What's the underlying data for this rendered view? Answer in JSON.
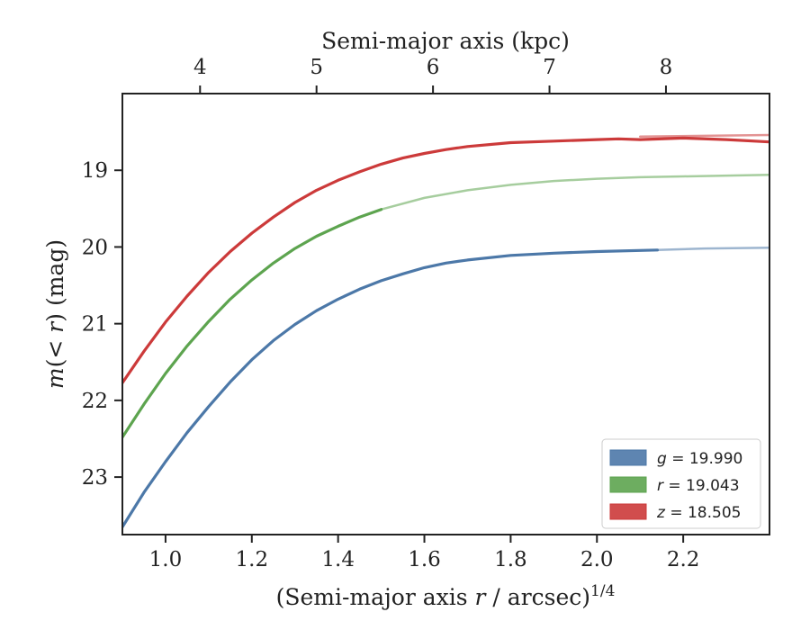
{
  "chart_data": {
    "type": "line",
    "xlabel": "(Semi-major axis r / arcsec)",
    "xlabel_parts": {
      "pre": "(Semi-major axis ",
      "var": "r",
      "post": " / arcsec)",
      "sup": "1/4"
    },
    "ylabel": "m(< r) (mag)",
    "ylabel_parts": {
      "m": "m",
      "open": "(",
      "lt": "< ",
      "r": "r",
      "close": ")",
      "unit": " (mag)"
    },
    "top_xlabel": "Semi-major axis (kpc)",
    "xlim": [
      0.9,
      2.4
    ],
    "ylim": [
      23.75,
      18.0
    ],
    "y_inverted": true,
    "x_ticks": [
      "1.0",
      "1.2",
      "1.4",
      "1.6",
      "1.8",
      "2.0",
      "2.2"
    ],
    "x_tick_values": [
      1.0,
      1.2,
      1.4,
      1.6,
      1.8,
      2.0,
      2.2
    ],
    "y_ticks": [
      "19",
      "20",
      "21",
      "22",
      "23"
    ],
    "y_tick_values": [
      19,
      20,
      21,
      22,
      23
    ],
    "top_ticks": [
      "4",
      "5",
      "6",
      "7",
      "8"
    ],
    "top_tick_positions": [
      1.08,
      1.35,
      1.62,
      1.89,
      2.16
    ],
    "legend_placement": "lower-right",
    "grid": false,
    "series": [
      {
        "name": "g = 19.990",
        "legend_var": "g",
        "legend_val": " = 19.990",
        "color": "#4C78A8",
        "x": [
          0.9,
          0.95,
          1.0,
          1.05,
          1.1,
          1.15,
          1.2,
          1.25,
          1.3,
          1.35,
          1.4,
          1.45,
          1.5,
          1.55,
          1.6,
          1.65,
          1.7,
          1.8,
          1.9,
          2.0,
          2.14
        ],
        "y": [
          23.65,
          23.2,
          22.8,
          22.42,
          22.08,
          21.76,
          21.47,
          21.22,
          21.01,
          20.83,
          20.68,
          20.55,
          20.44,
          20.35,
          20.27,
          20.21,
          20.17,
          20.11,
          20.08,
          20.06,
          20.04
        ],
        "ext_x": [
          2.14,
          2.25,
          2.4
        ],
        "ext_y": [
          20.04,
          20.02,
          20.01
        ]
      },
      {
        "name": "r = 19.043",
        "legend_var": "r",
        "legend_val": " = 19.043",
        "color": "#5DA44F",
        "x": [
          0.9,
          0.95,
          1.0,
          1.05,
          1.1,
          1.15,
          1.2,
          1.25,
          1.3,
          1.35,
          1.4,
          1.45,
          1.5
        ],
        "y": [
          22.48,
          22.05,
          21.65,
          21.29,
          20.97,
          20.68,
          20.43,
          20.21,
          20.02,
          19.86,
          19.73,
          19.61,
          19.51
        ],
        "ext_x": [
          1.5,
          1.6,
          1.7,
          1.8,
          1.9,
          2.0,
          2.1,
          2.2,
          2.4
        ],
        "ext_y": [
          19.51,
          19.36,
          19.26,
          19.19,
          19.14,
          19.11,
          19.09,
          19.08,
          19.06
        ]
      },
      {
        "name": "z = 18.505",
        "legend_var": "z",
        "legend_val": " = 18.505",
        "color": "#CC3A3A",
        "x": [
          0.9,
          0.95,
          1.0,
          1.05,
          1.1,
          1.15,
          1.2,
          1.25,
          1.3,
          1.35,
          1.4,
          1.45,
          1.5,
          1.55,
          1.6,
          1.65,
          1.7,
          1.8,
          1.9,
          2.0,
          2.05,
          2.1,
          2.2,
          2.3,
          2.4
        ],
        "y": [
          21.77,
          21.36,
          20.98,
          20.64,
          20.33,
          20.06,
          19.82,
          19.61,
          19.42,
          19.26,
          19.13,
          19.02,
          18.92,
          18.84,
          18.78,
          18.73,
          18.69,
          18.64,
          18.62,
          18.6,
          18.59,
          18.6,
          18.58,
          18.6,
          18.63
        ],
        "ext_x": [
          2.1,
          2.25,
          2.4
        ],
        "ext_y": [
          18.56,
          18.55,
          18.54
        ]
      }
    ]
  }
}
